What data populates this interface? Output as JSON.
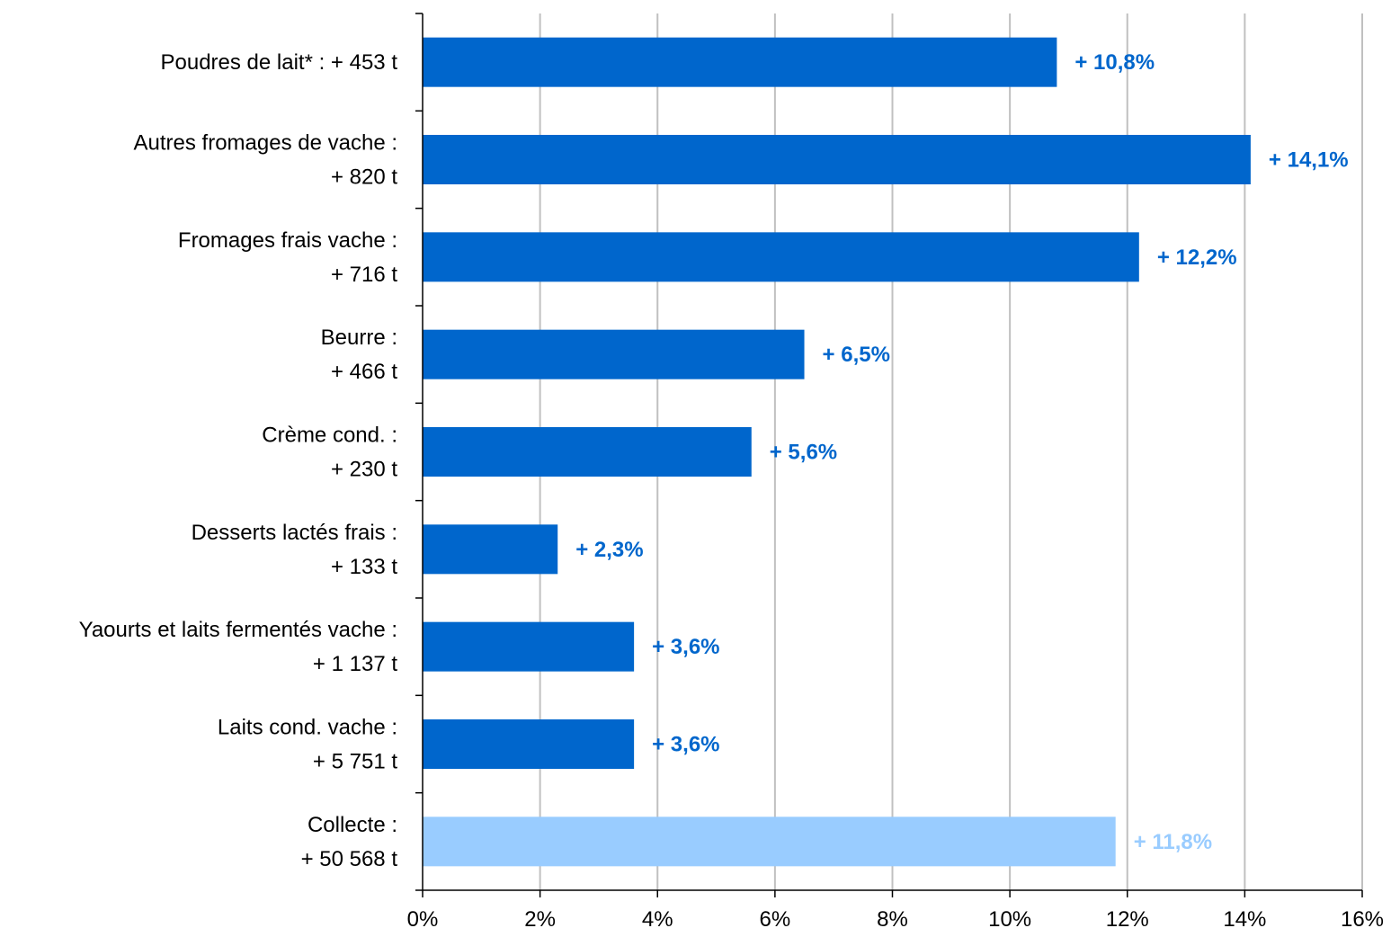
{
  "chart_data": {
    "type": "bar",
    "orientation": "horizontal",
    "categories": [
      [
        "Poudres de lait* :  + 453 t"
      ],
      [
        "Autres fromages de vache :",
        "+ 820 t"
      ],
      [
        "Fromages frais vache :",
        "+ 716 t"
      ],
      [
        "Beurre :",
        "+ 466 t"
      ],
      [
        "Crème cond. :",
        "+ 230 t"
      ],
      [
        "Desserts lactés frais :",
        "+ 133 t"
      ],
      [
        "Yaourts et laits fermentés vache :",
        "+ 1 137 t"
      ],
      [
        "Laits cond. vache :",
        "+ 5 751 t"
      ],
      [
        "Collecte :",
        "+ 50 568 t"
      ]
    ],
    "values": [
      10.8,
      14.1,
      12.2,
      6.5,
      5.6,
      2.3,
      3.6,
      3.6,
      11.8
    ],
    "data_labels": [
      "+ 10,8%",
      "+ 14,1%",
      "+ 12,2%",
      "+ 6,5%",
      "+ 5,6%",
      "+ 2,3%",
      "+ 3,6%",
      "+ 3,6%",
      "+ 11,8%"
    ],
    "bar_colors": [
      "#0066cc",
      "#0066cc",
      "#0066cc",
      "#0066cc",
      "#0066cc",
      "#0066cc",
      "#0066cc",
      "#0066cc",
      "#99ccff"
    ],
    "xlim": [
      0,
      16
    ],
    "xticks": [
      0,
      2,
      4,
      6,
      8,
      10,
      12,
      14,
      16
    ],
    "xtick_labels": [
      "0%",
      "2%",
      "4%",
      "6%",
      "8%",
      "10%",
      "12%",
      "14%",
      "16%"
    ],
    "grid": "vertical",
    "gridline_color": "#c0c0c0",
    "title": "",
    "xlabel": "",
    "ylabel": ""
  }
}
